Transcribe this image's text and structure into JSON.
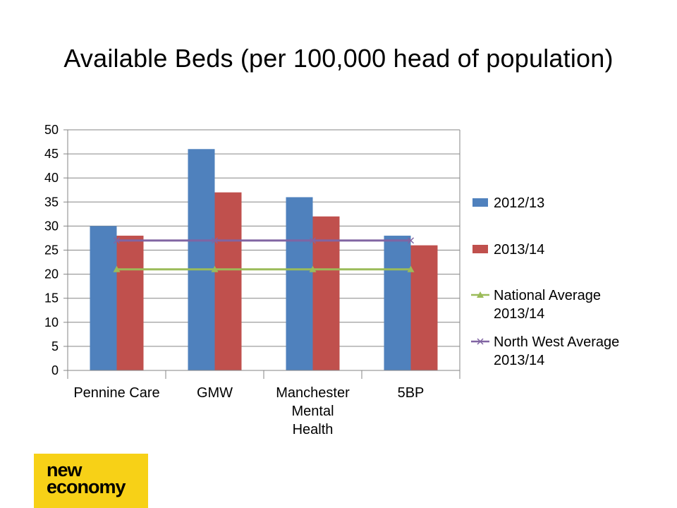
{
  "slide": {
    "title": "Available Beds (per 100,000 head of population)"
  },
  "logo": {
    "line1": "new",
    "line2": "economy",
    "background": "#f7d117"
  },
  "chart_data": {
    "type": "bar",
    "title": "",
    "xlabel": "",
    "ylabel": "",
    "ylim": [
      0,
      50
    ],
    "yticks": [
      0,
      5,
      10,
      15,
      20,
      25,
      30,
      35,
      40,
      45,
      50
    ],
    "grid": true,
    "legend_position": "right",
    "categories": [
      [
        "Pennine Care"
      ],
      [
        "GMW"
      ],
      [
        "Manchester",
        "Mental",
        "Health"
      ],
      [
        "5BP"
      ]
    ],
    "series": [
      {
        "name": "2012/13",
        "kind": "bar",
        "color": "#4f81bd",
        "values": [
          30,
          46,
          36,
          28
        ]
      },
      {
        "name": "2013/14",
        "kind": "bar",
        "color": "#c0504d",
        "values": [
          28,
          37,
          32,
          26
        ]
      },
      {
        "name": [
          "National Average",
          "2013/14"
        ],
        "kind": "line",
        "marker": "triangle",
        "color": "#9bbb59",
        "values": [
          21,
          21,
          21,
          21
        ]
      },
      {
        "name": [
          "North West Average",
          "2013/14"
        ],
        "kind": "line",
        "marker": "x",
        "color": "#8064a2",
        "values": [
          27,
          27,
          27,
          27
        ]
      }
    ]
  }
}
